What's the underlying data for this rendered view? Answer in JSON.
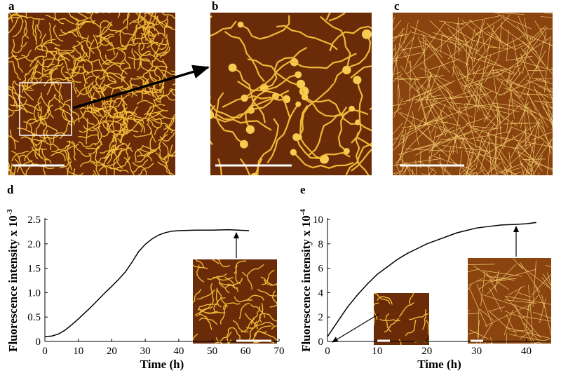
{
  "panel_labels": [
    "a",
    "b",
    "c"
  ],
  "chart_data": [
    {
      "type": "line",
      "panel": "d",
      "xlabel": "Time (h)",
      "ylabel": "Fluorescence intensity x 10",
      "ylabel_exponent": "-3",
      "x": [
        0,
        2,
        4,
        6,
        8,
        10,
        12,
        14,
        16,
        18,
        20,
        22,
        24,
        26,
        28,
        30,
        32,
        34,
        36,
        38,
        40,
        45,
        50,
        55,
        61
      ],
      "values": [
        0.1,
        0.11,
        0.15,
        0.23,
        0.34,
        0.46,
        0.59,
        0.72,
        0.86,
        1.0,
        1.13,
        1.27,
        1.42,
        1.62,
        1.84,
        1.99,
        2.1,
        2.18,
        2.23,
        2.26,
        2.27,
        2.28,
        2.28,
        2.29,
        2.27
      ],
      "color": "#000000",
      "xlim": [
        0,
        70
      ],
      "xticks": [
        0,
        10,
        20,
        30,
        40,
        50,
        60,
        70
      ],
      "ylim": [
        0,
        2.5
      ],
      "yticks": [
        0,
        0.5,
        {
          "value": 1,
          "label": "1.0"
        },
        1.5,
        {
          "value": 2,
          "label": "2.0"
        },
        2.5
      ]
    },
    {
      "type": "line",
      "panel": "e",
      "xlabel": "Time (h)",
      "ylabel": "Fluorescence intensity x 10",
      "ylabel_exponent": "-4",
      "x": [
        0,
        1,
        2,
        3,
        4,
        5,
        6,
        8,
        10,
        12,
        14,
        16,
        18,
        20,
        22,
        24,
        26,
        28,
        30,
        32,
        35,
        38,
        40,
        42
      ],
      "values": [
        0.4,
        1.0,
        1.6,
        2.2,
        2.8,
        3.3,
        3.8,
        4.7,
        5.5,
        6.1,
        6.7,
        7.2,
        7.6,
        8.0,
        8.3,
        8.6,
        8.9,
        9.1,
        9.3,
        9.4,
        9.55,
        9.6,
        9.65,
        9.75
      ],
      "color": "#000000",
      "xlim": [
        0,
        45
      ],
      "xticks": [
        0,
        10,
        20,
        30,
        40
      ],
      "ylim": [
        0,
        10
      ],
      "yticks": [
        0,
        2,
        4,
        6,
        8,
        10
      ]
    }
  ]
}
